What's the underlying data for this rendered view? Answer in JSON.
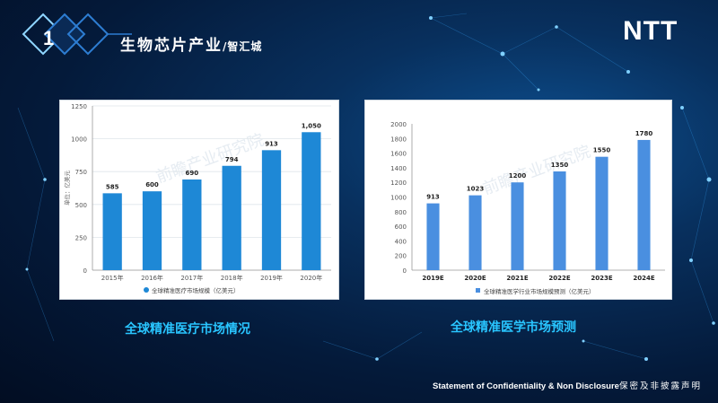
{
  "header": {
    "number": "1",
    "title": "生物芯片产业",
    "subtitle": "/智汇城",
    "logo": "NTT"
  },
  "captions": {
    "left": "全球精准医疗市场情况",
    "right": "全球精准医学市场预测"
  },
  "footer": {
    "statement_en": "Statement of Confidentiality & Non Disclosure",
    "statement_cn": "保密及非披露声明"
  },
  "colors": {
    "left_bar": "#1e88d6",
    "right_bar": "#4a8fe0",
    "caption": "#29c5ff"
  },
  "chart_data": [
    {
      "type": "bar",
      "categories": [
        "2015年",
        "2016年",
        "2017年",
        "2018年",
        "2019年",
        "2020年"
      ],
      "values": [
        585,
        600,
        690,
        794,
        913,
        1050
      ],
      "value_labels": [
        "585",
        "600",
        "690",
        "794",
        "913",
        "1,050"
      ],
      "ylabel": "单位：亿美元",
      "yticks": [
        0,
        250,
        500,
        750,
        1000,
        1250
      ],
      "ylim": [
        0,
        1250
      ],
      "grid": true,
      "legend": "全球精准医疗市场规模（亿美元）",
      "legend_position": "bottom",
      "watermark": "前瞻产业研究院"
    },
    {
      "type": "bar",
      "categories": [
        "2019E",
        "2020E",
        "2021E",
        "2022E",
        "2023E",
        "2024E"
      ],
      "values": [
        913,
        1023,
        1200,
        1350,
        1550,
        1780
      ],
      "value_labels": [
        "913",
        "1023",
        "1200",
        "1350",
        "1550",
        "1780"
      ],
      "yticks": [
        0,
        200,
        400,
        600,
        800,
        1000,
        1200,
        1400,
        1600,
        1800,
        2000
      ],
      "ylim": [
        0,
        2000
      ],
      "grid": false,
      "legend": "全球精准医学行业市场规模预测（亿美元）",
      "legend_position": "bottom",
      "watermark": "前瞻产业研究院"
    }
  ]
}
